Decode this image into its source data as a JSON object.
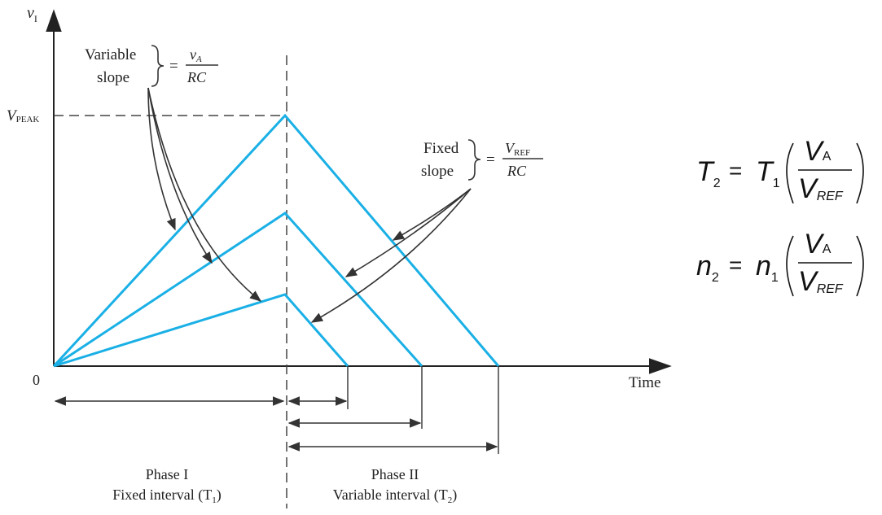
{
  "axes": {
    "y_label": "v",
    "y_label_sub": "I",
    "origin_label": "0",
    "x_label": "Time",
    "peak_label": "V",
    "peak_label_sub": "PEAK"
  },
  "annotations": {
    "variable_slope": {
      "line1": "Variable",
      "line2": "slope",
      "equals": "=",
      "numerator": "v",
      "numerator_sub": "A",
      "denominator": "RC"
    },
    "fixed_slope": {
      "line1": "Fixed",
      "line2": "slope",
      "equals": "=",
      "numerator": "V",
      "numerator_sub": "REF",
      "denominator": "RC"
    }
  },
  "phases": {
    "phase1_title": "Phase I",
    "phase1_desc": "Fixed interval (T",
    "phase1_sub": "1",
    "phase2_title": "Phase II",
    "phase2_desc": "Variable interval (T",
    "phase2_sub": "2"
  },
  "equations": [
    {
      "lhs": "T",
      "lhs_sub": "2",
      "eq": "=",
      "rhs": "T",
      "rhs_sub": "1",
      "num": "V",
      "num_sub": "A",
      "den": "V",
      "den_sub": "REF"
    },
    {
      "lhs": "n",
      "lhs_sub": "2",
      "eq": "=",
      "rhs": "n",
      "rhs_sub": "1",
      "num": "V",
      "num_sub": "A",
      "den": "V",
      "den_sub": "REF"
    }
  ],
  "colors": {
    "waveform": "#1ab0e6",
    "axes": "#222222",
    "arrows": "#333333"
  }
}
